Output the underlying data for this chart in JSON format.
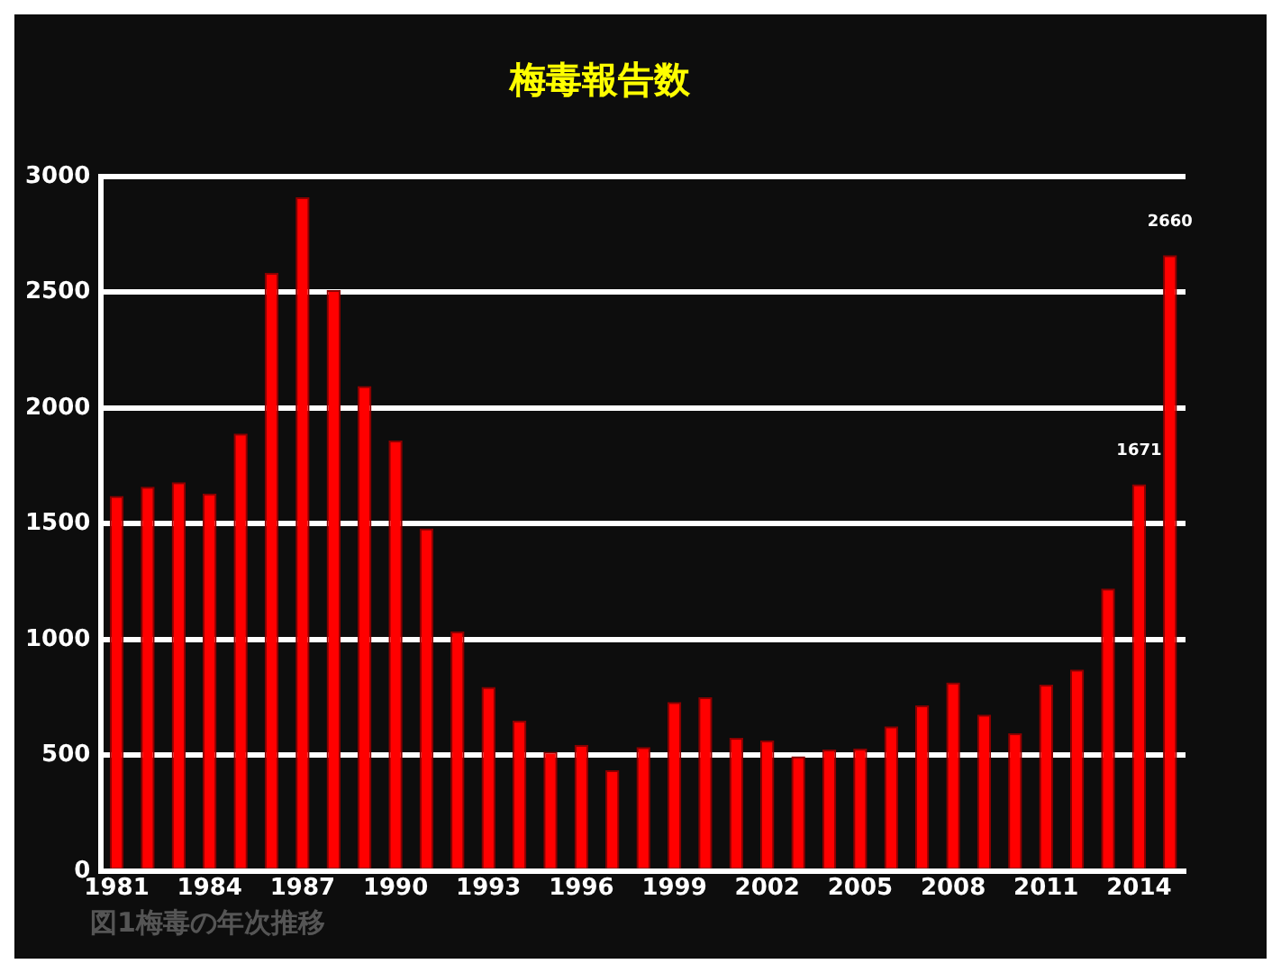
{
  "chart_data": {
    "type": "bar",
    "title": "梅毒報告数",
    "categories": [
      "1981",
      null,
      null,
      "1984",
      null,
      null,
      "1987",
      null,
      null,
      "1990",
      null,
      null,
      "1993",
      null,
      null,
      "1996",
      null,
      null,
      "1999",
      null,
      null,
      "2002",
      null,
      null,
      "2005",
      null,
      null,
      "2008",
      null,
      null,
      "2011",
      null,
      null,
      "2014",
      null
    ],
    "values": [
      1620,
      1660,
      1680,
      1630,
      1890,
      2585,
      2910,
      2510,
      2095,
      1860,
      1480,
      1035,
      795,
      650,
      515,
      545,
      435,
      535,
      730,
      750,
      575,
      565,
      495,
      525,
      530,
      625,
      715,
      815,
      675,
      595,
      805,
      870,
      1220,
      1671,
      2660
    ],
    "value_labels": [
      null,
      null,
      null,
      null,
      null,
      null,
      null,
      null,
      null,
      null,
      null,
      null,
      null,
      null,
      null,
      null,
      null,
      null,
      null,
      null,
      null,
      null,
      null,
      null,
      null,
      null,
      null,
      null,
      null,
      null,
      null,
      null,
      null,
      "1671",
      "2660"
    ],
    "color": "#ff0000",
    "ylim": [
      0,
      3000
    ],
    "yticks": [
      0,
      500,
      1000,
      1500,
      2000,
      2500,
      3000
    ],
    "grid": "y",
    "annotations": [
      "図1梅毒の年次推移"
    ]
  }
}
